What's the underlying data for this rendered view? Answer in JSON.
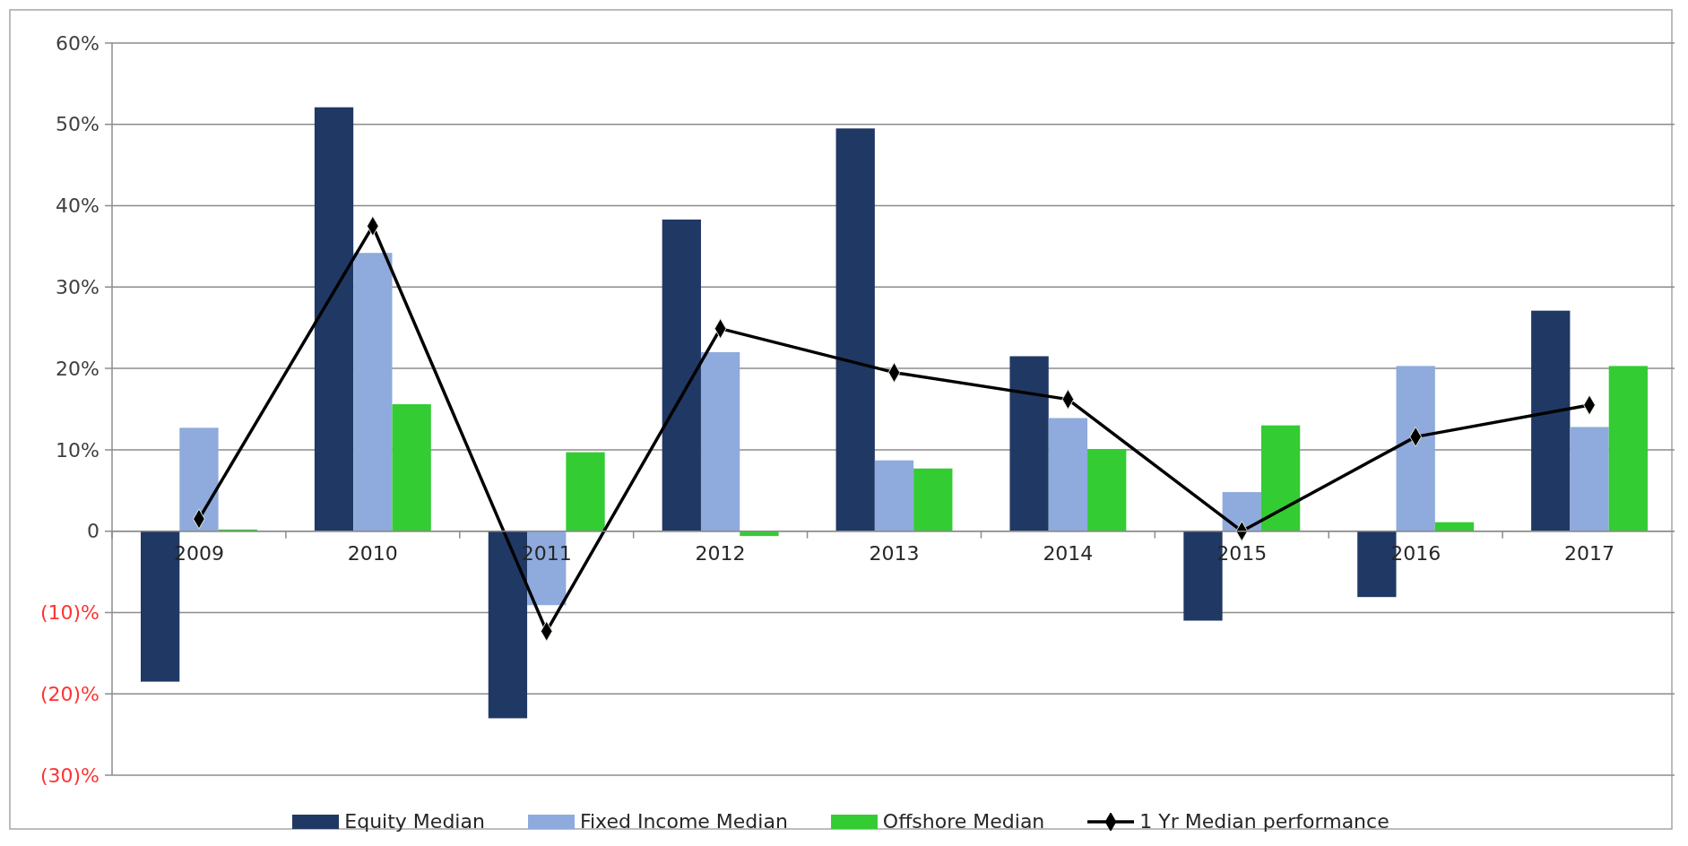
{
  "chart_data": {
    "type": "bar",
    "categories": [
      "2009",
      "2010",
      "2011",
      "2012",
      "2013",
      "2014",
      "2015",
      "2016",
      "2017"
    ],
    "series": [
      {
        "name": "Equity Median",
        "color": "#203864",
        "values": [
          -18.5,
          52.1,
          -23.0,
          38.3,
          49.5,
          21.5,
          -11.0,
          -8.1,
          27.1
        ]
      },
      {
        "name": "Fixed Income Median",
        "color": "#8faadc",
        "values": [
          12.7,
          34.2,
          -9.1,
          22.0,
          8.7,
          13.9,
          4.8,
          20.3,
          12.8
        ]
      },
      {
        "name": "Offshore Median",
        "color": "#33cc33",
        "values": [
          0.2,
          15.6,
          9.7,
          -0.6,
          7.7,
          10.1,
          13.0,
          1.1,
          20.3
        ]
      },
      {
        "name": "1 Yr Median performance",
        "type": "line",
        "color": "#000000",
        "marker": "diamond",
        "values": [
          1.5,
          37.5,
          -12.3,
          24.9,
          19.5,
          16.2,
          0,
          11.6,
          15.5
        ]
      }
    ],
    "ylim": [
      -30,
      60
    ],
    "yticks": [
      {
        "value": -30,
        "label": "(30)%"
      },
      {
        "value": -20,
        "label": "(20)%"
      },
      {
        "value": -10,
        "label": "(10)%"
      },
      0,
      {
        "value": 10,
        "label": "10%"
      },
      {
        "value": 20,
        "label": "20%"
      },
      {
        "value": 30,
        "label": "30%"
      },
      {
        "value": 40,
        "label": "40%"
      },
      {
        "value": 50,
        "label": "50%"
      },
      {
        "value": 60,
        "label": "60%"
      }
    ],
    "grid": "y",
    "legend": "bottom"
  }
}
